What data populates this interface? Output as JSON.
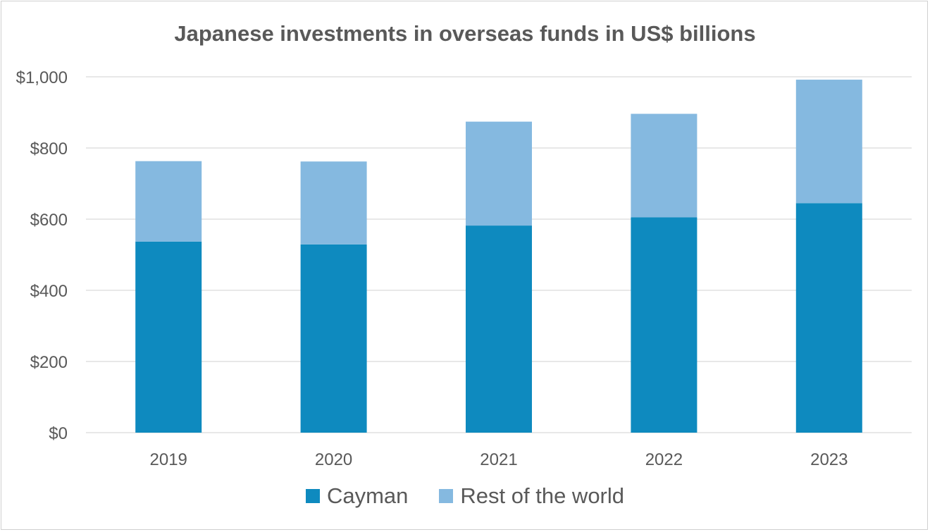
{
  "chart_data": {
    "type": "bar",
    "stacked": true,
    "title": "Japanese investments in overseas funds in US$ billions",
    "categories": [
      "2019",
      "2020",
      "2021",
      "2022",
      "2023"
    ],
    "series": [
      {
        "name": "Cayman",
        "values": [
          537,
          529,
          582,
          605,
          645
        ],
        "color": "#0e8abf"
      },
      {
        "name": "Rest of the world",
        "values": [
          226,
          233,
          292,
          291,
          347
        ],
        "color": "#85b9e0"
      }
    ],
    "y_ticks": [
      "$0",
      "$200",
      "$400",
      "$600",
      "$800",
      "$1,000"
    ],
    "ylim": [
      0,
      1000
    ],
    "grid": true,
    "legend_position": "bottom",
    "gridline_color": "#d9d9d9"
  }
}
